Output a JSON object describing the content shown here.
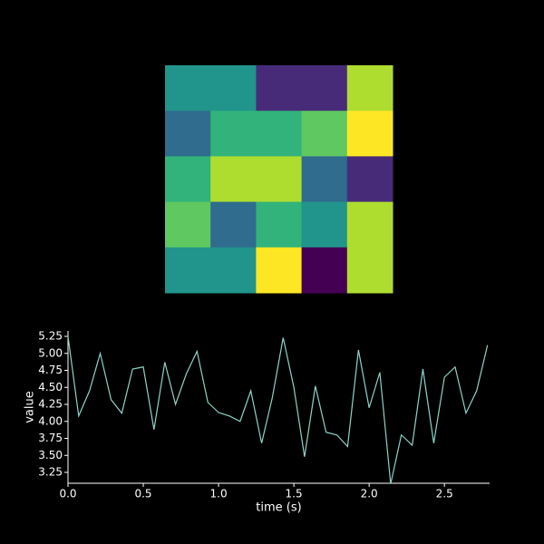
{
  "chart_data": [
    {
      "type": "heatmap",
      "colormap": "viridis",
      "vlim": [
        0,
        1
      ],
      "values": [
        [
          0.52,
          0.52,
          0.12,
          0.12,
          0.88
        ],
        [
          0.35,
          0.65,
          0.65,
          0.75,
          1.0
        ],
        [
          0.65,
          0.88,
          0.88,
          0.35,
          0.12
        ],
        [
          0.75,
          0.35,
          0.65,
          0.52,
          0.88
        ],
        [
          0.52,
          0.52,
          1.0,
          0.0,
          0.88
        ]
      ]
    },
    {
      "type": "line",
      "xlabel": "time (s)",
      "ylabel": "value",
      "color": "#8dd3c7",
      "x": [
        0,
        0.071,
        0.143,
        0.214,
        0.286,
        0.357,
        0.429,
        0.5,
        0.571,
        0.643,
        0.714,
        0.786,
        0.857,
        0.929,
        1.0,
        1.071,
        1.143,
        1.214,
        1.286,
        1.357,
        1.429,
        1.5,
        1.571,
        1.643,
        1.714,
        1.786,
        1.857,
        1.929,
        2.0,
        2.071,
        2.143,
        2.214,
        2.286,
        2.357,
        2.429,
        2.5,
        2.571,
        2.643,
        2.714,
        2.786
      ],
      "values": [
        5.25,
        4.08,
        4.45,
        5.0,
        4.32,
        4.12,
        4.77,
        4.8,
        3.88,
        4.87,
        4.25,
        4.7,
        5.03,
        4.28,
        4.13,
        4.08,
        4.0,
        4.45,
        3.68,
        4.35,
        5.23,
        4.5,
        3.48,
        4.52,
        3.84,
        3.8,
        3.63,
        5.05,
        4.2,
        4.72,
        3.08,
        3.8,
        3.65,
        4.77,
        3.68,
        4.65,
        4.8,
        4.12,
        4.45,
        5.12
      ],
      "xlim": [
        0,
        2.8
      ],
      "ylim": [
        3.09,
        5.33
      ],
      "xticks": [
        {
          "value": 0,
          "label": "0.0"
        },
        0.5,
        {
          "value": 1,
          "label": "1.0"
        },
        1.5,
        {
          "value": 2,
          "label": "2.0"
        },
        2.5
      ],
      "yticks": [
        3.25,
        {
          "value": 3.5,
          "label": "3.50"
        },
        3.75,
        {
          "value": 4,
          "label": "4.00"
        },
        4.25,
        {
          "value": 4.5,
          "label": "4.50"
        },
        4.75,
        {
          "value": 5,
          "label": "5.00"
        },
        5.25
      ]
    }
  ]
}
